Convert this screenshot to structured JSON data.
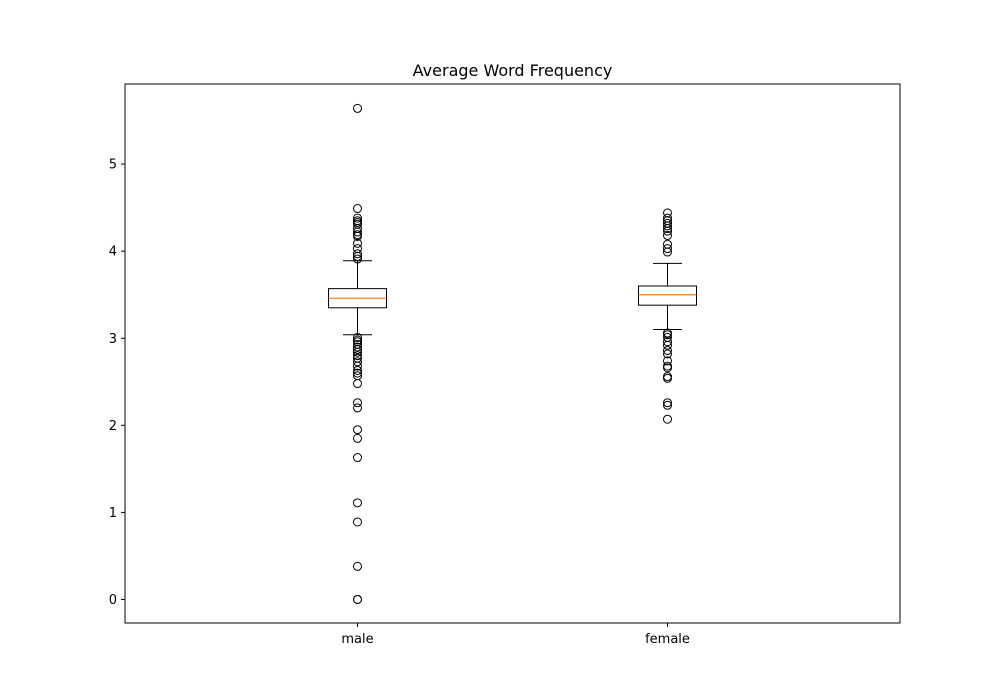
{
  "chart_data": {
    "type": "box",
    "title": "Average Word Frequency",
    "xlabel": "",
    "ylabel": "",
    "ylim": [
      -0.27,
      5.92
    ],
    "yticks": [
      0,
      1,
      2,
      3,
      4,
      5
    ],
    "grid": false,
    "categories": [
      "male",
      "female"
    ],
    "boxes": [
      {
        "category": "male",
        "whisker_low": 3.04,
        "q1": 3.35,
        "median": 3.46,
        "q3": 3.57,
        "whisker_high": 3.89,
        "outliers": [
          5.64,
          4.49,
          4.38,
          4.35,
          4.33,
          4.31,
          4.26,
          4.22,
          4.19,
          4.17,
          4.09,
          4.03,
          3.97,
          3.94,
          3.91,
          3.01,
          2.98,
          2.96,
          2.93,
          2.9,
          2.87,
          2.84,
          2.8,
          2.77,
          2.73,
          2.68,
          2.63,
          2.6,
          2.57,
          2.48,
          2.26,
          2.2,
          1.95,
          1.85,
          1.63,
          1.11,
          0.89,
          0.38,
          0.0,
          0.0
        ]
      },
      {
        "category": "female",
        "whisker_low": 3.1,
        "q1": 3.38,
        "median": 3.5,
        "q3": 3.6,
        "whisker_high": 3.86,
        "outliers": [
          4.44,
          4.38,
          4.35,
          4.32,
          4.29,
          4.26,
          4.23,
          4.18,
          4.08,
          4.03,
          3.99,
          3.06,
          3.04,
          3.01,
          2.96,
          2.92,
          2.86,
          2.82,
          2.74,
          2.68,
          2.66,
          2.56,
          2.54,
          2.26,
          2.23,
          2.07
        ]
      }
    ]
  },
  "colors": {
    "box": "#000000",
    "median": "#ff7f0e",
    "outlier": "#000000"
  }
}
